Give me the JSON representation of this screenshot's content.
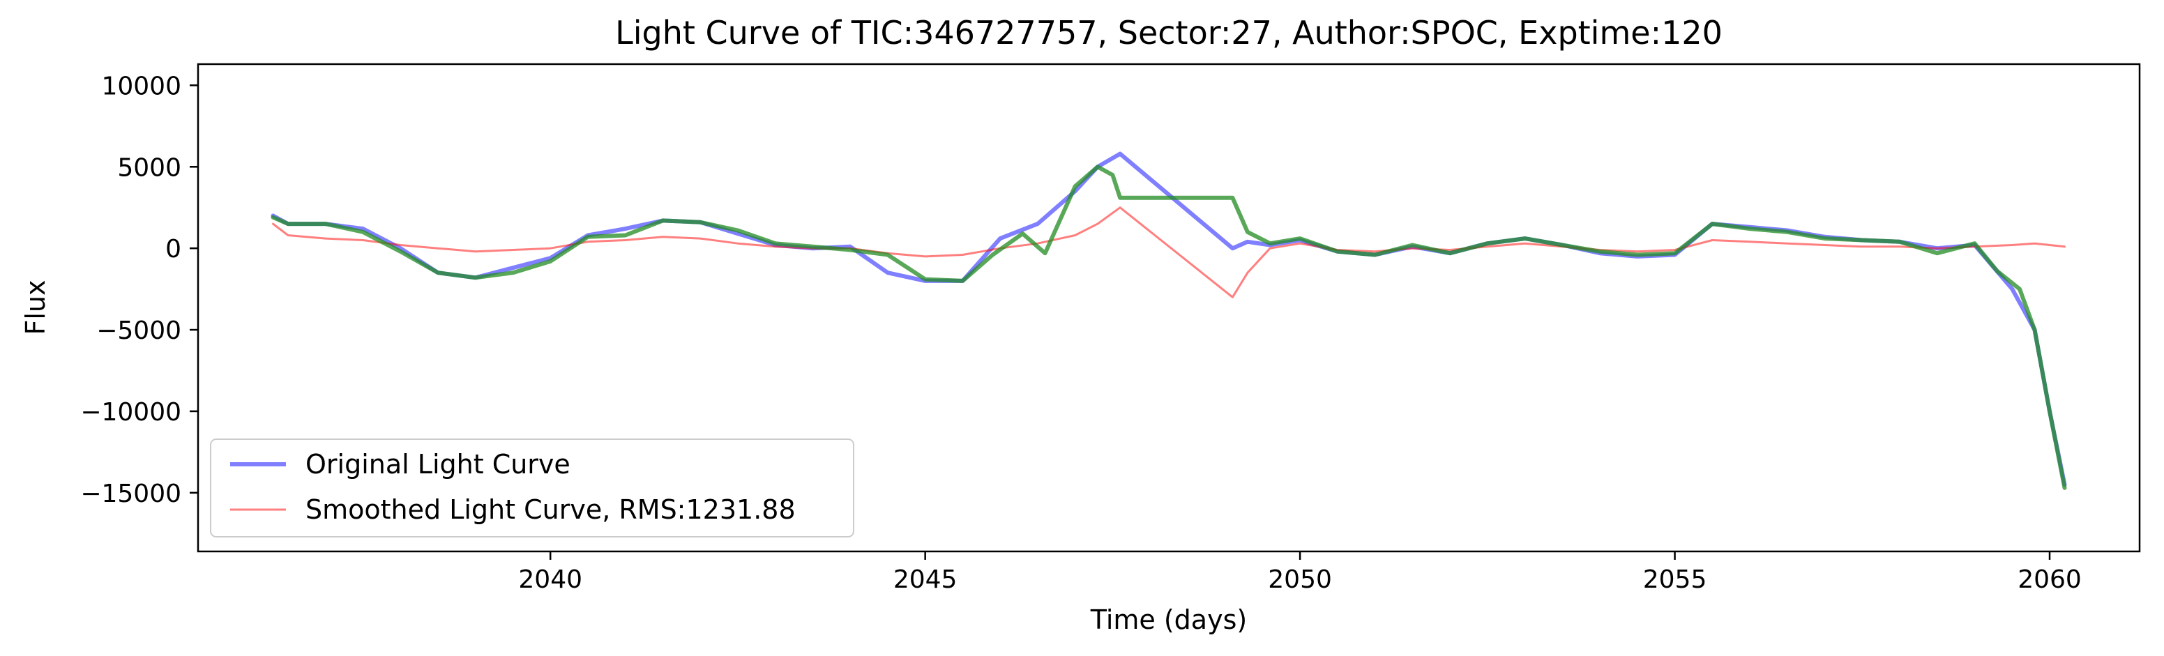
{
  "chart_data": {
    "type": "line",
    "title": "Light Curve of TIC:346727757, Sector:27, Author:SPOC, Exptime:120",
    "xlabel": "Time (days)",
    "ylabel": "Flux",
    "xlim": [
      2035.3,
      2061.2
    ],
    "ylim": [
      -18600,
      11300
    ],
    "grid": false,
    "legend_position": "lower-left",
    "x_ticks": [
      {
        "value": 2040,
        "label": "2040"
      },
      {
        "value": 2045,
        "label": "2045"
      },
      {
        "value": 2050,
        "label": "2050"
      },
      {
        "value": 2055,
        "label": "2055"
      },
      {
        "value": 2060,
        "label": "2060"
      }
    ],
    "y_ticks": [
      {
        "value": 10000,
        "label": "10000"
      },
      {
        "value": 5000,
        "label": "5000"
      },
      {
        "value": 0,
        "label": "0"
      },
      {
        "value": -5000,
        "label": "−5000"
      },
      {
        "value": -10000,
        "label": "−10000"
      },
      {
        "value": -15000,
        "label": "−15000"
      }
    ],
    "series": [
      {
        "name": "Original Light Curve",
        "color": "#0000ff",
        "x": [
          2036.3,
          2036.5,
          2037.0,
          2037.5,
          2038.0,
          2038.5,
          2039.0,
          2039.5,
          2040.0,
          2040.5,
          2041.0,
          2041.5,
          2042.0,
          2042.5,
          2043.0,
          2043.5,
          2044.0,
          2044.5,
          2045.0,
          2045.5,
          2046.0,
          2046.5,
          2047.0,
          2047.3,
          2047.6,
          2049.1,
          2049.3,
          2049.6,
          2050.0,
          2050.5,
          2051.0,
          2051.5,
          2052.0,
          2052.5,
          2053.0,
          2053.5,
          2054.0,
          2054.5,
          2055.0,
          2055.5,
          2056.0,
          2056.5,
          2057.0,
          2057.5,
          2058.0,
          2058.5,
          2059.0,
          2059.5,
          2059.8,
          2060.0,
          2060.2
        ],
        "y": [
          2000,
          1500,
          1500,
          1200,
          0,
          -1500,
          -1800,
          -1200,
          -600,
          800,
          1200,
          1700,
          1600,
          900,
          200,
          0,
          100,
          -1500,
          -2000,
          -2000,
          600,
          1500,
          3500,
          5000,
          5800,
          0,
          400,
          200,
          500,
          -200,
          -400,
          100,
          -300,
          300,
          600,
          200,
          -300,
          -500,
          -400,
          1500,
          1300,
          1100,
          700,
          500,
          400,
          0,
          200,
          -2500,
          -5000,
          -10000,
          -14500
        ]
      },
      {
        "name": "Smoothed Light Curve, RMS:1231.88",
        "color": "#ff0000",
        "x": [
          2036.3,
          2036.5,
          2037.0,
          2037.5,
          2038.0,
          2038.5,
          2039.0,
          2039.5,
          2040.0,
          2040.5,
          2041.0,
          2041.5,
          2042.0,
          2042.5,
          2043.0,
          2043.5,
          2044.0,
          2044.5,
          2045.0,
          2045.5,
          2046.0,
          2046.5,
          2047.0,
          2047.3,
          2047.6,
          2049.1,
          2049.3,
          2049.6,
          2050.0,
          2050.5,
          2051.0,
          2051.5,
          2052.0,
          2052.5,
          2053.0,
          2053.5,
          2054.0,
          2054.5,
          2055.0,
          2055.5,
          2056.0,
          2056.5,
          2057.0,
          2057.5,
          2058.0,
          2058.5,
          2059.0,
          2059.5,
          2059.8,
          2060.0,
          2060.2
        ],
        "y": [
          1500,
          800,
          600,
          500,
          200,
          0,
          -200,
          -100,
          0,
          400,
          500,
          700,
          600,
          300,
          100,
          0,
          0,
          -300,
          -500,
          -400,
          0,
          300,
          800,
          1500,
          2500,
          -3000,
          -1500,
          0,
          300,
          -100,
          -200,
          0,
          -100,
          100,
          300,
          100,
          -100,
          -200,
          -100,
          500,
          400,
          300,
          200,
          100,
          100,
          0,
          100,
          200,
          300,
          200,
          100
        ]
      },
      {
        "name": "",
        "color": "#228b22",
        "x": [
          2036.3,
          2036.5,
          2037.0,
          2037.5,
          2038.0,
          2038.5,
          2039.0,
          2039.5,
          2040.0,
          2040.5,
          2041.0,
          2041.5,
          2042.0,
          2042.5,
          2043.0,
          2043.5,
          2044.0,
          2044.5,
          2045.0,
          2045.5,
          2045.9,
          2046.3,
          2046.6,
          2047.0,
          2047.3,
          2047.5,
          2047.6,
          2049.1,
          2049.3,
          2049.6,
          2050.0,
          2050.5,
          2051.0,
          2051.5,
          2052.0,
          2052.5,
          2053.0,
          2053.5,
          2054.0,
          2054.5,
          2055.0,
          2055.5,
          2056.0,
          2056.5,
          2057.0,
          2057.5,
          2058.0,
          2058.5,
          2059.0,
          2059.3,
          2059.6,
          2059.8,
          2060.0,
          2060.2
        ],
        "y": [
          1900,
          1500,
          1500,
          1000,
          -200,
          -1500,
          -1800,
          -1500,
          -800,
          700,
          800,
          1700,
          1600,
          1100,
          300,
          100,
          -100,
          -400,
          -1900,
          -2000,
          -400,
          900,
          -300,
          3800,
          5000,
          4500,
          3100,
          3100,
          1000,
          300,
          600,
          -200,
          -400,
          200,
          -300,
          300,
          600,
          200,
          -200,
          -400,
          -300,
          1500,
          1200,
          1000,
          600,
          500,
          400,
          -300,
          300,
          -1400,
          -2500,
          -5000,
          -10000,
          -14700
        ]
      }
    ]
  },
  "legend": {
    "items": [
      {
        "label": "Original Light Curve",
        "color": "#0000ff"
      },
      {
        "label": "Smoothed Light Curve, RMS:1231.88",
        "color": "#ff0000"
      }
    ]
  }
}
